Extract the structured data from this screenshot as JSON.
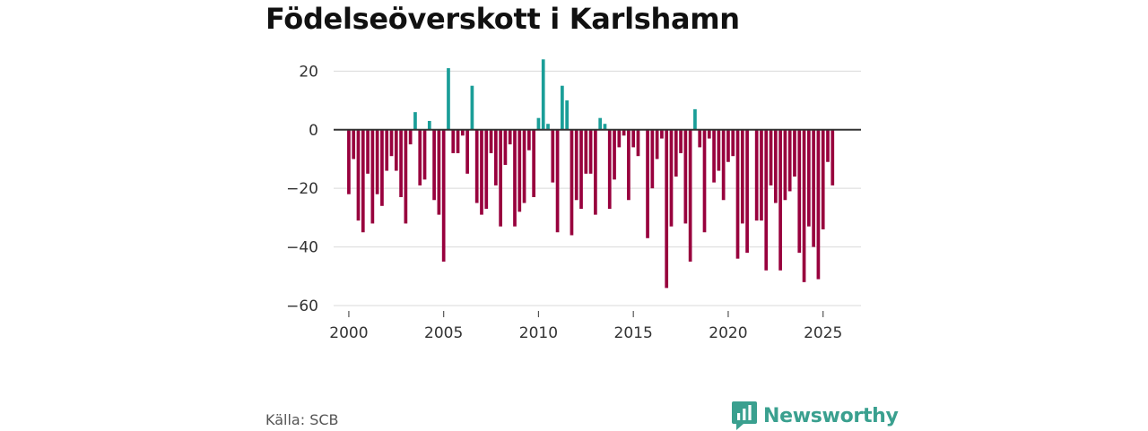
{
  "header": {
    "title": "Födelseöverskott i Karlshamn"
  },
  "footer": {
    "source": "Källa: SCB",
    "brand": "Newsworthy"
  },
  "colors": {
    "positive": "#1a9e98",
    "negative": "#98003d",
    "grid": "#d9d9d9",
    "zero_line": "#333333",
    "brand": "#3aa08f"
  },
  "chart_data": {
    "type": "bar",
    "title": "Födelseöverskott i Karlshamn",
    "xlabel": "",
    "ylabel": "",
    "frequency": "monthly",
    "x_start": 2000.0,
    "x_step": 0.25,
    "xlim": [
      1999.2,
      2027.0
    ],
    "ylim": [
      -60,
      25
    ],
    "x_ticks": [
      2000,
      2005,
      2010,
      2015,
      2020,
      2025
    ],
    "x_tick_labels": [
      "2000",
      "2005",
      "2010",
      "2015",
      "2020",
      "2025"
    ],
    "y_ticks": [
      20,
      0,
      -20,
      -40,
      -60
    ],
    "y_tick_labels": [
      "20",
      "0",
      "−20",
      "−40",
      "−60"
    ],
    "values": [
      -22,
      -10,
      -31,
      -35,
      -15,
      -32,
      -22,
      -26,
      -14,
      -9,
      -14,
      -23,
      -32,
      -5,
      6,
      -19,
      -17,
      3,
      -24,
      -29,
      -45,
      21,
      -8,
      -8,
      -2,
      -15,
      15,
      -25,
      -29,
      -27,
      -8,
      -19,
      -33,
      -12,
      -5,
      -33,
      -28,
      -25,
      -7,
      -23,
      4,
      24,
      2,
      -18,
      -35,
      15,
      10,
      -36,
      -24,
      -27,
      -15,
      -15,
      -29,
      4,
      2,
      -27,
      -17,
      -6,
      -2,
      -24,
      -6,
      -9,
      0,
      -37,
      -20,
      -10,
      -3,
      -54,
      -33,
      -16,
      -8,
      -32,
      -45,
      7,
      -6,
      -35,
      -3,
      -18,
      -14,
      -24,
      -11,
      -9,
      -44,
      -32,
      -42,
      0,
      -31,
      -31,
      -48,
      -19,
      -25,
      -48,
      -24,
      -21,
      -16,
      -42,
      -52,
      -33,
      -40,
      -51,
      -34,
      -11,
      -19
    ]
  }
}
